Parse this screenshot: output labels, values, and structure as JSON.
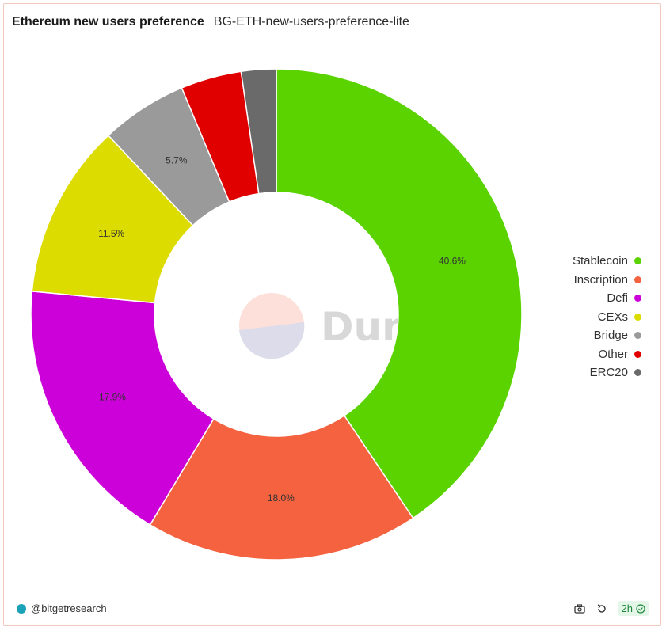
{
  "header": {
    "title": "Ethereum new users preference",
    "subtitle": "BG-ETH-new-users-preference-lite"
  },
  "watermark": {
    "text": "Dune"
  },
  "chart_data": {
    "type": "pie",
    "donut": true,
    "title": "Ethereum new users preference",
    "legend_position": "right",
    "series": [
      {
        "name": "Stablecoin",
        "value": 40.6,
        "color": "#5ad300",
        "label": "40.6%"
      },
      {
        "name": "Inscription",
        "value": 18.0,
        "color": "#f46240",
        "label": "18.0%"
      },
      {
        "name": "Defi",
        "value": 17.9,
        "color": "#cc00d8",
        "label": "17.9%"
      },
      {
        "name": "CEXs",
        "value": 11.5,
        "color": "#dcdc00",
        "label": "11.5%"
      },
      {
        "name": "Bridge",
        "value": 5.7,
        "color": "#9a9a9a",
        "label": "5.7%"
      },
      {
        "name": "Other",
        "value": 4.0,
        "color": "#e00000",
        "label": ""
      },
      {
        "name": "ERC20",
        "value": 2.3,
        "color": "#6a6a6a",
        "label": ""
      }
    ]
  },
  "footer": {
    "author": "@bitgetresearch",
    "refresh_age": "2h",
    "icons": [
      "camera-icon",
      "refresh-icon",
      "check-circle-icon"
    ]
  }
}
